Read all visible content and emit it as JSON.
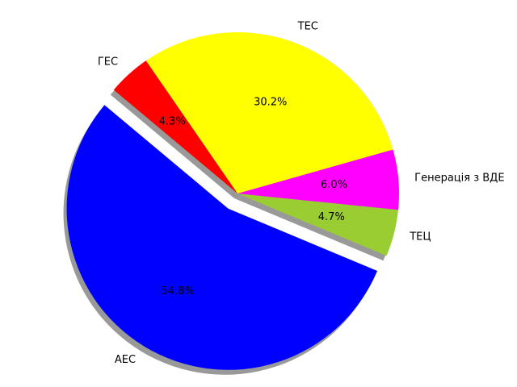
{
  "chart_data": {
    "type": "pie",
    "title": "",
    "slices": [
      {
        "label": "АЕС",
        "value": 54.8,
        "pct_label": "54.8%",
        "color": "#0000ff",
        "exploded": true
      },
      {
        "label": "ТЕЦ",
        "value": 4.7,
        "pct_label": "4.7%",
        "color": "#9acd32",
        "exploded": false
      },
      {
        "label": "Генерація з ВДЕ",
        "value": 6.0,
        "pct_label": "6.0%",
        "color": "#ff00ff",
        "exploded": false
      },
      {
        "label": "ТЕС",
        "value": 30.2,
        "pct_label": "30.2%",
        "color": "#ffff00",
        "exploded": false
      },
      {
        "label": "ГЕС",
        "value": 4.3,
        "pct_label": "4.3%",
        "color": "#ff0000",
        "exploded": false
      }
    ],
    "start_angle_deg": 140,
    "shadow": true,
    "legend": false
  }
}
